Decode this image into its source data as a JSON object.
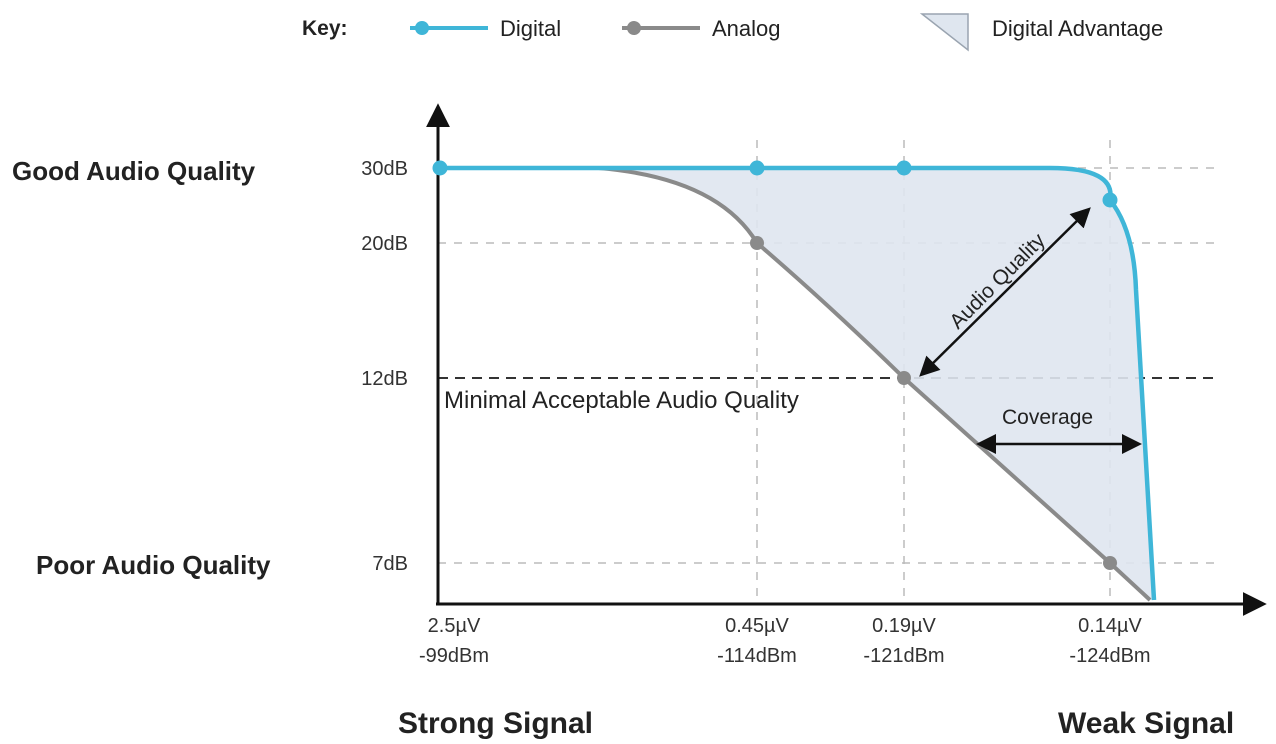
{
  "chart_data": {
    "type": "line",
    "key": {
      "title": "Key:",
      "entries": [
        {
          "label": "Digital",
          "color": "#3fb6d8"
        },
        {
          "label": "Analog",
          "color": "#8a8a8a"
        },
        {
          "label": "Digital Advantage",
          "color": "#dfe6ef"
        }
      ]
    },
    "y_quality_labels": {
      "top": "Good Audio Quality",
      "bottom": "Poor Audio Quality"
    },
    "x_end_labels": {
      "left": "Strong Signal",
      "right": "Weak Signal"
    },
    "y_ticks": [
      {
        "label": "30dB",
        "value": 30
      },
      {
        "label": "20dB",
        "value": 20
      },
      {
        "label": "12dB",
        "value": 12
      },
      {
        "label": "7dB",
        "value": 7
      }
    ],
    "x_ticks": [
      {
        "line1": "2.5µV",
        "line2": "-99dBm",
        "dbm": -99
      },
      {
        "line1": "0.45µV",
        "line2": "-114dBm",
        "dbm": -114
      },
      {
        "line1": "0.19µV",
        "line2": "-121dBm",
        "dbm": -121
      },
      {
        "line1": "0.14µV",
        "line2": "-124dBm",
        "dbm": -124
      }
    ],
    "series": [
      {
        "name": "Digital",
        "color": "#3fb6d8",
        "points": [
          {
            "dbm": -99,
            "db": 30
          },
          {
            "dbm": -114,
            "db": 30
          },
          {
            "dbm": -121,
            "db": 30
          },
          {
            "dbm": -124,
            "db": 26
          }
        ],
        "end_dbm": -126.2,
        "end_db": 4
      },
      {
        "name": "Analog",
        "color": "#8a8a8a",
        "points": [
          {
            "dbm": -114,
            "db": 20
          },
          {
            "dbm": -121,
            "db": 12
          },
          {
            "dbm": -124,
            "db": 7
          }
        ],
        "start_dbm": -106.5,
        "start_db": 30,
        "end_dbm": -126,
        "end_db": 4
      }
    ],
    "threshold": {
      "db": 12,
      "label": "Minimal Acceptable Audio Quality"
    },
    "annotations": {
      "audio_quality": "Audio Quality",
      "coverage": "Coverage"
    },
    "grid": "dashed"
  }
}
